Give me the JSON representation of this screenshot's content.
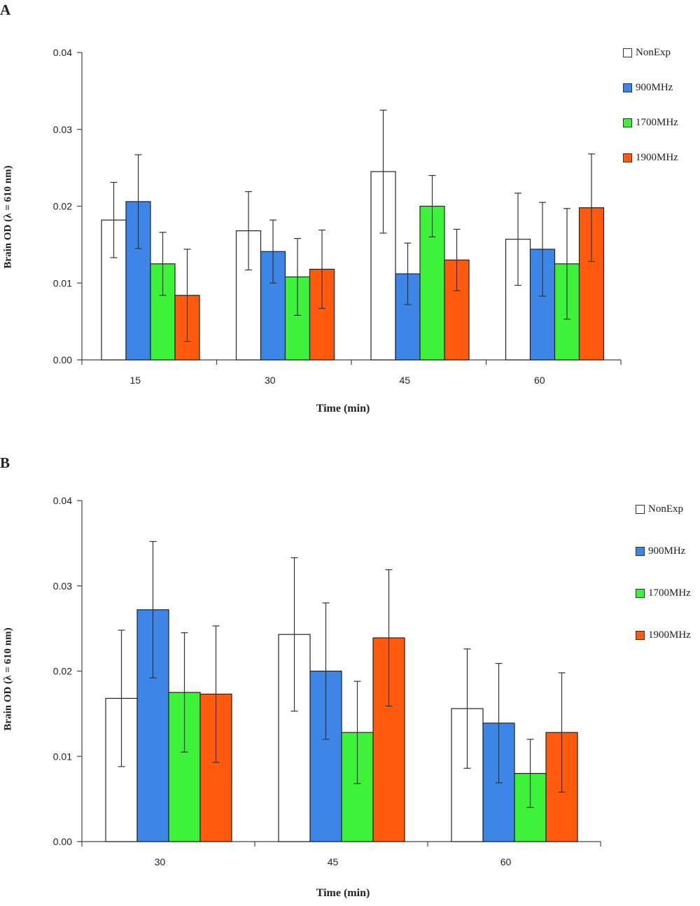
{
  "chart_data": [
    {
      "type": "bar",
      "panel_label": "A",
      "categories": [
        "15",
        "30",
        "45",
        "60"
      ],
      "series": [
        {
          "name": "NonExp",
          "color": "#ffffff",
          "values": [
            0.0182,
            0.0168,
            0.0245,
            0.0157
          ],
          "err": [
            0.0049,
            0.0051,
            0.008,
            0.006
          ]
        },
        {
          "name": "900MHz",
          "color": "#3d85e6",
          "values": [
            0.0206,
            0.0141,
            0.0112,
            0.0144
          ],
          "err": [
            0.0061,
            0.0041,
            0.004,
            0.0061
          ]
        },
        {
          "name": "1700MHz",
          "color": "#3ef23a",
          "values": [
            0.0125,
            0.0108,
            0.02,
            0.0125
          ],
          "err": [
            0.0041,
            0.005,
            0.004,
            0.0072
          ]
        },
        {
          "name": "1900MHz",
          "color": "#ff5a0d",
          "values": [
            0.0084,
            0.0118,
            0.013,
            0.0198
          ],
          "err": [
            0.006,
            0.0051,
            0.004,
            0.007
          ]
        }
      ],
      "xlabel": "Time (min)",
      "ylabel": "Brain OD (λ = 610 nm)",
      "ylim": [
        0,
        0.04
      ],
      "yticks": [
        "0.00",
        "0.01",
        "0.02",
        "0.03",
        "0.04"
      ],
      "legend_position": "top-right",
      "grid": false
    },
    {
      "type": "bar",
      "panel_label": "B",
      "categories": [
        "30",
        "45",
        "60"
      ],
      "series": [
        {
          "name": "NonExp",
          "color": "#ffffff",
          "values": [
            0.0168,
            0.0243,
            0.0156
          ],
          "err": [
            0.008,
            0.009,
            0.007
          ]
        },
        {
          "name": "900MHz",
          "color": "#3d85e6",
          "values": [
            0.0272,
            0.02,
            0.0139
          ],
          "err": [
            0.008,
            0.008,
            0.007
          ]
        },
        {
          "name": "1700MHz",
          "color": "#3ef23a",
          "values": [
            0.0175,
            0.0128,
            0.008
          ],
          "err": [
            0.007,
            0.006,
            0.004
          ]
        },
        {
          "name": "1900MHz",
          "color": "#ff5a0d",
          "values": [
            0.0173,
            0.0239,
            0.0128
          ],
          "err": [
            0.008,
            0.008,
            0.007
          ]
        }
      ],
      "xlabel": "Time (min)",
      "ylabel": "Brain OD (λ = 610 nm)",
      "ylim": [
        0,
        0.04
      ],
      "yticks": [
        "0.00",
        "0.01",
        "0.02",
        "0.03",
        "0.04"
      ],
      "legend_position": "top-right",
      "grid": false
    }
  ]
}
